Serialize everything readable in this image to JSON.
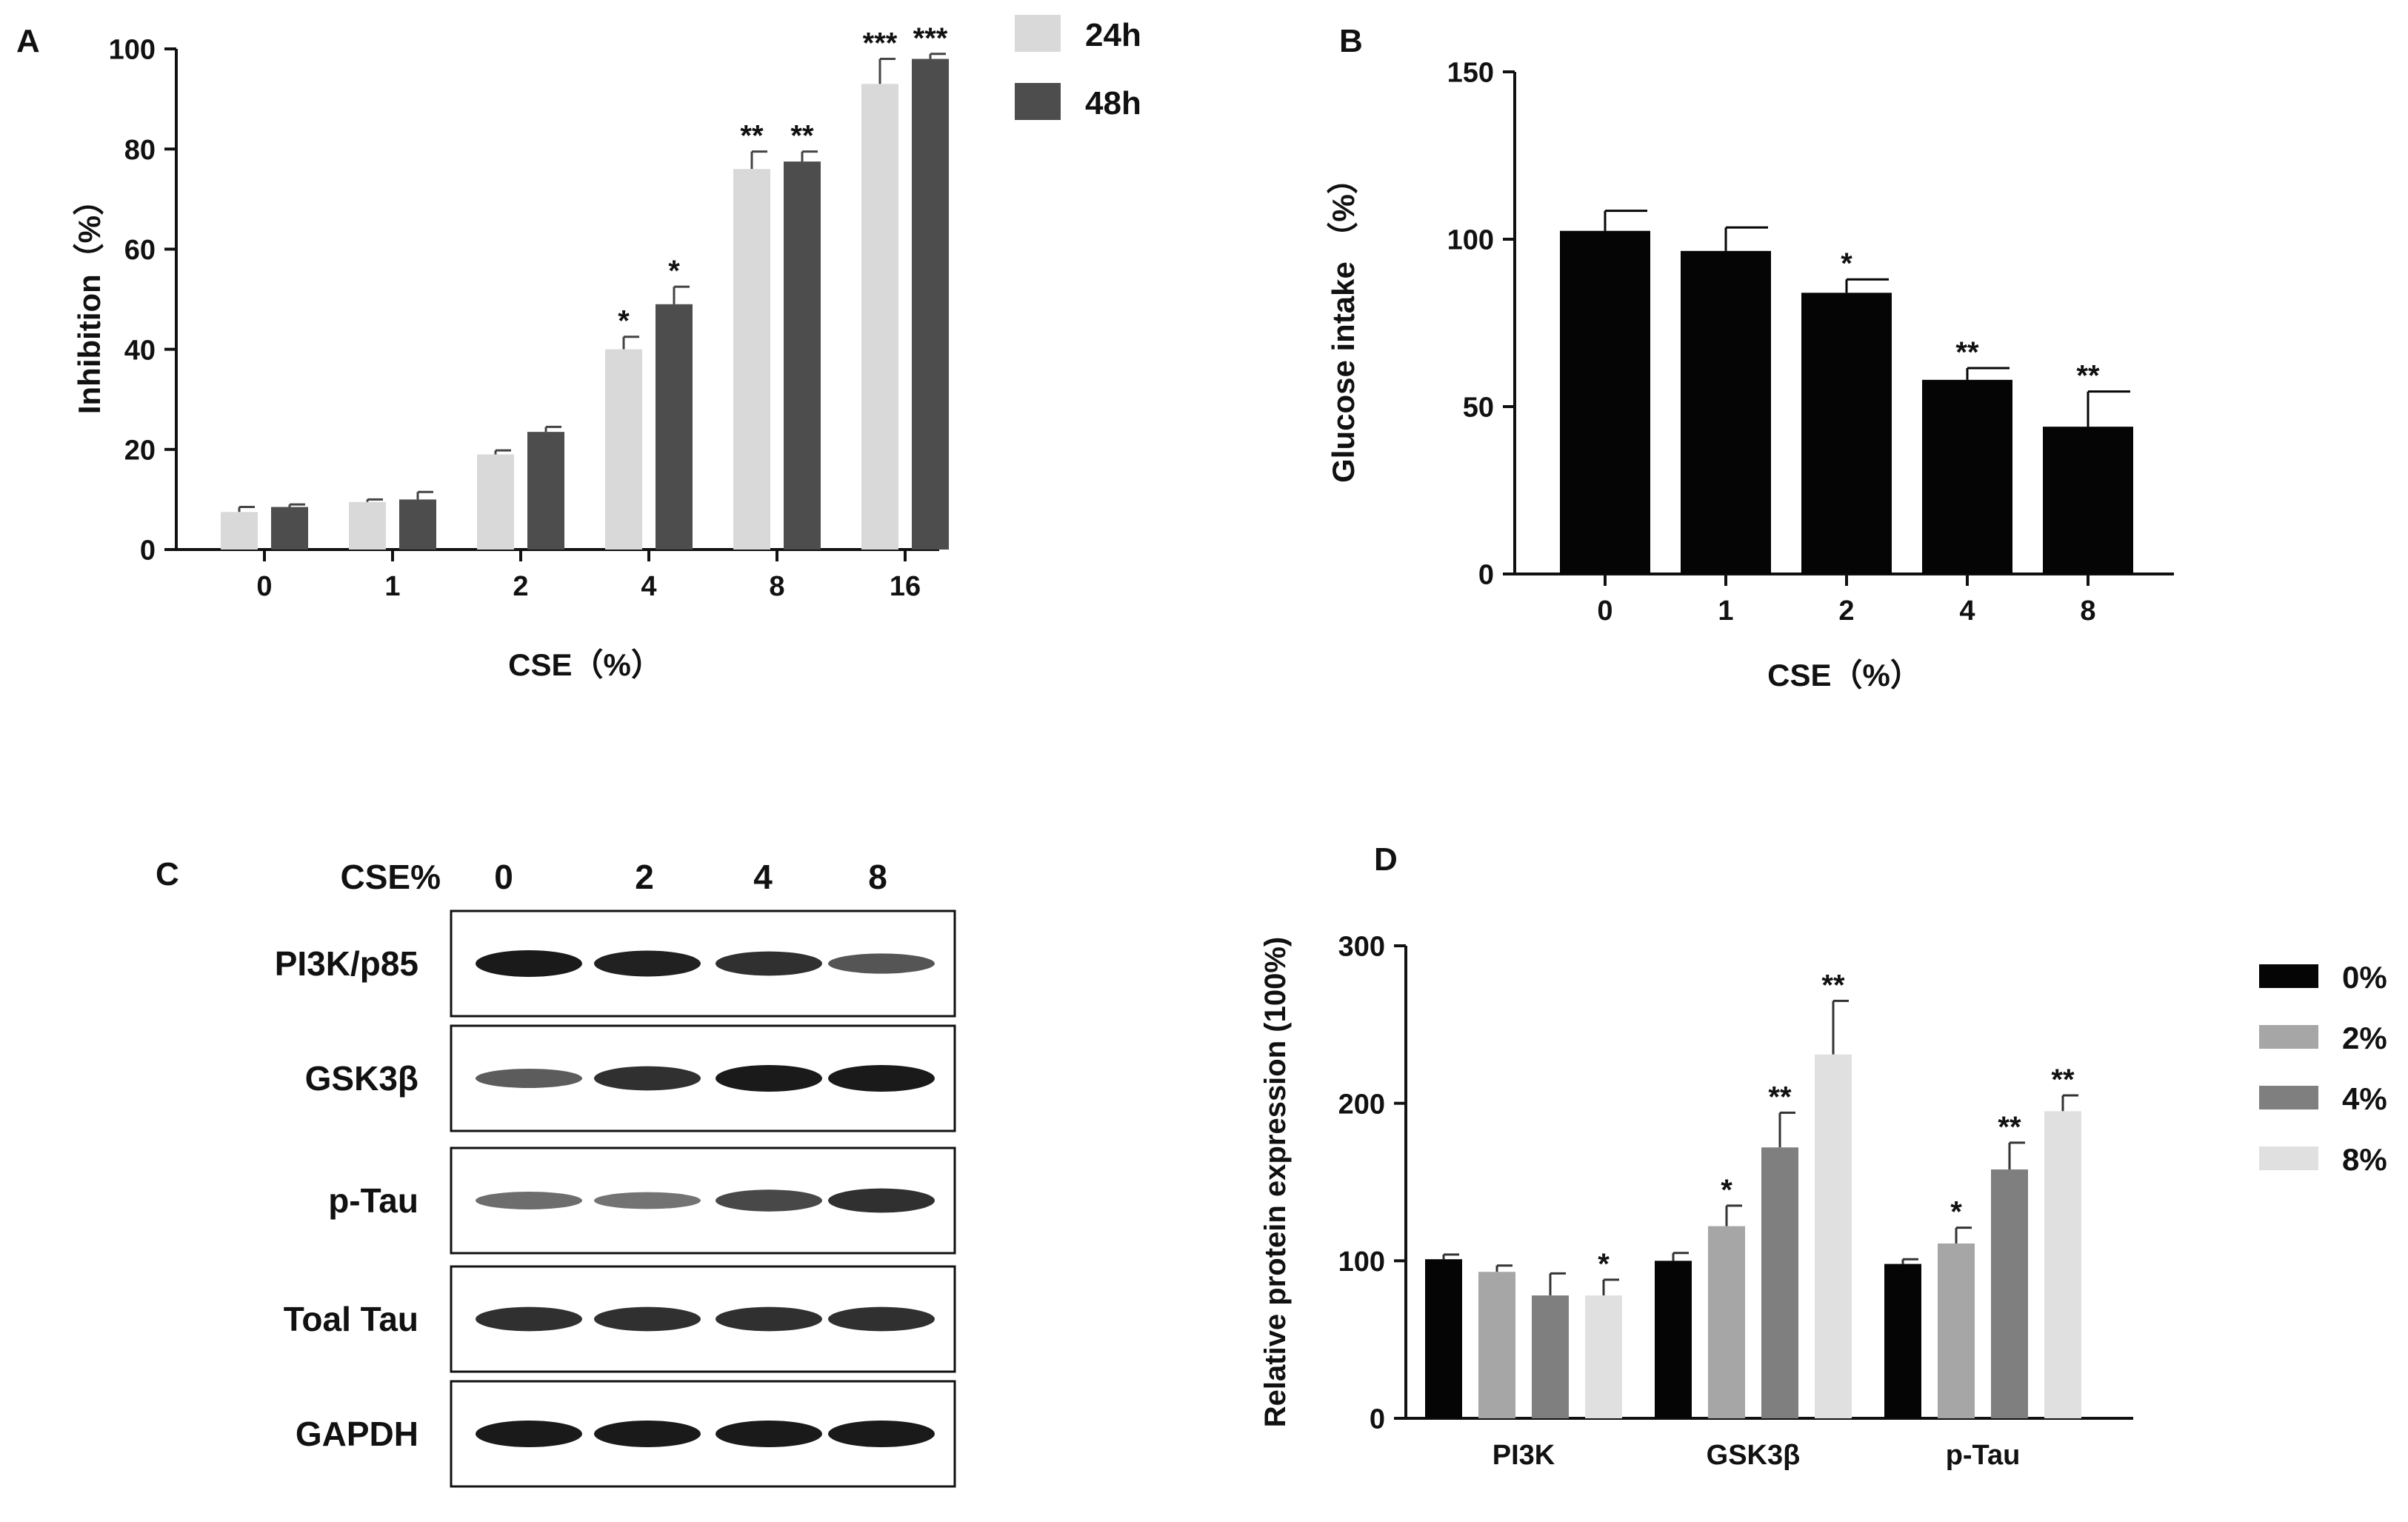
{
  "colors": {
    "axis": "#111111",
    "gray_light": "#d9d9d9",
    "gray_dark": "#4d4d4d",
    "black": "#050505",
    "gray_mid": "#a6a6a6",
    "gray_med_dark": "#7f7f7f",
    "gray_lightest": "#e0e0e0",
    "blot_bg": "#ffffff",
    "band": "#1a1a1a"
  },
  "chart_data": [
    {
      "panel": "A",
      "type": "bar",
      "xlabel": "CSE（%）",
      "ylabel": "Inhibition（%）",
      "ylim": [
        0,
        100
      ],
      "yticks": [
        0,
        20,
        40,
        60,
        80,
        100
      ],
      "categories": [
        "0",
        "1",
        "2",
        "4",
        "8",
        "16"
      ],
      "legend_position": "top-right",
      "series": [
        {
          "name": "24h",
          "color_key": "gray_light",
          "values": [
            7.5,
            9.5,
            19,
            40,
            76,
            93
          ],
          "errors": [
            1,
            0.5,
            0.8,
            2.5,
            3.5,
            5
          ],
          "sig": [
            "",
            "",
            "",
            "*",
            "**",
            "***"
          ]
        },
        {
          "name": "48h",
          "color_key": "gray_dark",
          "values": [
            8.5,
            10,
            23.5,
            49,
            77.5,
            98
          ],
          "errors": [
            0.5,
            1.5,
            1,
            3.5,
            2,
            1
          ],
          "sig": [
            "",
            "",
            "",
            "*",
            "**",
            "***"
          ]
        }
      ]
    },
    {
      "panel": "B",
      "type": "bar",
      "xlabel": "CSE（%）",
      "ylabel": "Glucose intake （%）",
      "ylim": [
        0,
        150
      ],
      "yticks": [
        0,
        50,
        100,
        150
      ],
      "categories": [
        "0",
        "1",
        "2",
        "4",
        "8"
      ],
      "series": [
        {
          "name": "Glucose intake",
          "color_key": "black",
          "values": [
            102.5,
            96.5,
            84,
            58,
            44
          ],
          "errors": [
            6,
            7,
            4,
            3.5,
            10.5
          ],
          "sig": [
            "",
            "",
            "*",
            "**",
            "**"
          ]
        }
      ]
    },
    {
      "panel": "D",
      "type": "bar",
      "xlabel": "",
      "ylabel": "Relative protein expression (100%)",
      "ylim": [
        0,
        300
      ],
      "yticks": [
        0,
        100,
        200,
        300
      ],
      "categories": [
        "PI3K",
        "GSK3β",
        "p-Tau"
      ],
      "legend_position": "right",
      "series": [
        {
          "name": "0%",
          "color_key": "black",
          "values": [
            101,
            100,
            98
          ],
          "errors": [
            3,
            5,
            3
          ],
          "sig": [
            "",
            "",
            ""
          ]
        },
        {
          "name": "2%",
          "color_key": "gray_mid",
          "values": [
            93,
            122,
            111
          ],
          "errors": [
            4,
            13,
            10
          ],
          "sig": [
            "",
            "*",
            "*"
          ]
        },
        {
          "name": "4%",
          "color_key": "gray_med_dark",
          "values": [
            78,
            172,
            158
          ],
          "errors": [
            14,
            22,
            17
          ],
          "sig": [
            "",
            "**",
            "**"
          ]
        },
        {
          "name": "8%",
          "color_key": "gray_lightest",
          "values": [
            78,
            231,
            195
          ],
          "errors": [
            10,
            34,
            10
          ],
          "sig": [
            "*",
            "**",
            "**"
          ]
        }
      ]
    }
  ],
  "blot": {
    "panel": "C",
    "header_label": "CSE%",
    "lanes": [
      "0",
      "2",
      "4",
      "8"
    ],
    "rows": [
      {
        "label": "PI3K/p85",
        "intensity": [
          1.0,
          0.95,
          0.85,
          0.6
        ]
      },
      {
        "label": "GSK3β",
        "intensity": [
          0.55,
          0.85,
          1.0,
          1.0
        ]
      },
      {
        "label": "p-Tau",
        "intensity": [
          0.45,
          0.4,
          0.7,
          0.85
        ]
      },
      {
        "label": "Toal Tau",
        "intensity": [
          0.85,
          0.85,
          0.85,
          0.85
        ]
      },
      {
        "label": "GAPDH",
        "intensity": [
          1.0,
          1.0,
          1.0,
          1.0
        ]
      }
    ]
  }
}
